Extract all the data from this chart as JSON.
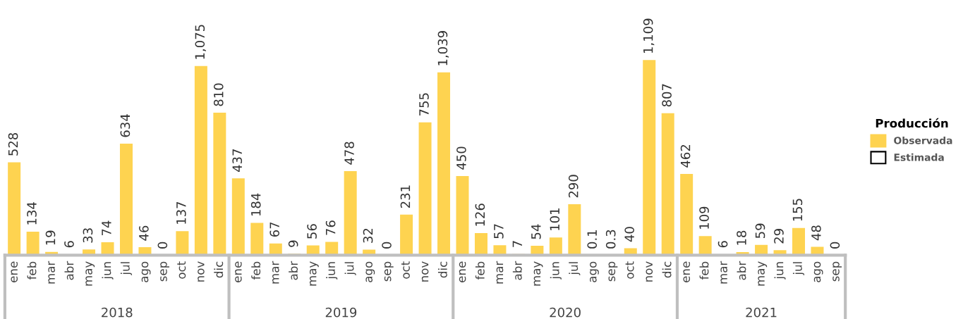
{
  "chart_data": {
    "type": "bar",
    "legend": "right",
    "legend_title": "Producción",
    "tick_labels": "x",
    "categories": [
      "ene",
      "feb",
      "mar",
      "abr",
      "may",
      "jun",
      "jul",
      "ago",
      "sep",
      "oct",
      "nov",
      "dic",
      "ene",
      "feb",
      "mar",
      "abr",
      "may",
      "jun",
      "jul",
      "ago",
      "sep",
      "oct",
      "nov",
      "dic",
      "ene",
      "feb",
      "mar",
      "abr",
      "may",
      "jun",
      "jul",
      "ago",
      "sep",
      "oct",
      "nov",
      "dic",
      "ene",
      "feb",
      "mar",
      "abr",
      "may",
      "jun",
      "jul",
      "ago",
      "sep"
    ],
    "annotations": [
      "2018",
      "2019",
      "2020",
      "2021"
    ],
    "series": [
      {
        "name": "Observada",
        "color": "#fed350",
        "values": [
          528,
          134,
          19,
          6,
          33,
          74,
          634,
          46,
          0,
          137,
          1075,
          810,
          437,
          184,
          67,
          9,
          56,
          76,
          478,
          32,
          0,
          231,
          755,
          1039,
          450,
          126,
          57,
          7,
          54,
          101,
          290,
          null,
          null,
          40,
          1109,
          807,
          462,
          109,
          6,
          18,
          59,
          29,
          155,
          48,
          0
        ],
        "value_labels": [
          "528",
          "134",
          "19",
          "6",
          "33",
          "74",
          "634",
          "46",
          "0",
          "137",
          "1,075",
          "810",
          "437",
          "184",
          "67",
          "9",
          "56",
          "76",
          "478",
          "32",
          "0",
          "231",
          "755",
          "1,039",
          "450",
          "126",
          "57",
          "7",
          "54",
          "101",
          "290",
          null,
          null,
          "40",
          "1,109",
          "807",
          "462",
          "109",
          "6",
          "18",
          "59",
          "29",
          "155",
          "48",
          "0"
        ]
      },
      {
        "name": "Estimada",
        "color": "#ffffff",
        "values": [
          null,
          null,
          null,
          null,
          null,
          null,
          null,
          null,
          null,
          null,
          null,
          null,
          null,
          null,
          null,
          null,
          null,
          null,
          null,
          null,
          null,
          null,
          null,
          null,
          null,
          null,
          null,
          null,
          null,
          null,
          null,
          0.1,
          0.3,
          null,
          null,
          null,
          null,
          null,
          null,
          null,
          null,
          null,
          null,
          null,
          null
        ],
        "value_labels": [
          null,
          null,
          null,
          null,
          null,
          null,
          null,
          null,
          null,
          null,
          null,
          null,
          null,
          null,
          null,
          null,
          null,
          null,
          null,
          null,
          null,
          null,
          null,
          null,
          null,
          null,
          null,
          null,
          null,
          null,
          null,
          "0.1",
          "0.3",
          null,
          null,
          null,
          null,
          null,
          null,
          null,
          null,
          null,
          null,
          null,
          null
        ]
      }
    ]
  }
}
